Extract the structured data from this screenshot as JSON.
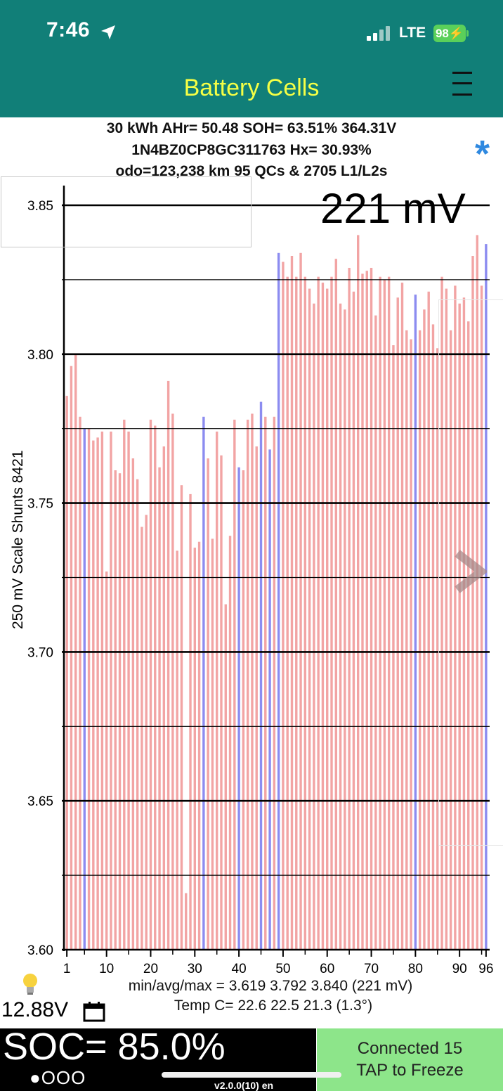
{
  "status_bar": {
    "time": "7:46",
    "network": "LTE",
    "battery": "98"
  },
  "nav": {
    "title": "Battery Cells"
  },
  "info": {
    "line1": "30 kWh  AHr= 50.48  SOH= 63.51%   364.31V",
    "line2": "1N4BZ0CP8GC311763   Hx= 30.93%",
    "line3": "odo=123,238 km 95 QCs & 2705 L1/L2s",
    "star": "*"
  },
  "range_label": "221 mV",
  "y_title": "250 mV Scale   Shunts 8421",
  "stats": {
    "minmax": "min/avg/max = 3.619  3.792  3.840  (221 mV)",
    "temp": "Temp C= 22.6  22.5  21.3  (1.3°)"
  },
  "aux_voltage": "12.88V",
  "soc": "SOC= 85.0%",
  "dots": "●OOO",
  "connection": {
    "line1": "Connected 15",
    "line2": "TAP to Freeze"
  },
  "version": "v2.0.0(10) en",
  "colors": {
    "bar": "#f2a4a4",
    "shunt_bar": "#8c8cf0",
    "header": "#117f78",
    "title": "#f5ff45",
    "connect_bg": "#8de58a"
  },
  "chart_data": {
    "type": "bar",
    "ylim": [
      3.6,
      3.85
    ],
    "yticks": [
      "3.85",
      "3.80",
      "3.75",
      "3.70",
      "3.65",
      "3.60"
    ],
    "xticks": [
      "1",
      "10",
      "20",
      "30",
      "40",
      "50",
      "60",
      "70",
      "80",
      "90",
      "96"
    ],
    "grid": true,
    "shunted_cells": [
      5,
      32,
      40,
      45,
      47,
      49,
      80,
      96
    ],
    "values": [
      3.786,
      3.796,
      3.8,
      3.779,
      3.775,
      3.775,
      3.771,
      3.772,
      3.774,
      3.727,
      3.774,
      3.761,
      3.76,
      3.778,
      3.774,
      3.765,
      3.758,
      3.742,
      3.746,
      3.778,
      3.776,
      3.762,
      3.769,
      3.791,
      3.78,
      3.734,
      3.756,
      3.619,
      3.753,
      3.735,
      3.737,
      3.779,
      3.765,
      3.738,
      3.774,
      3.766,
      3.716,
      3.739,
      3.778,
      3.762,
      3.761,
      3.778,
      3.78,
      3.769,
      3.784,
      3.779,
      3.768,
      3.779,
      3.834,
      3.831,
      3.826,
      3.833,
      3.826,
      3.834,
      3.826,
      3.822,
      3.817,
      3.826,
      3.824,
      3.822,
      3.826,
      3.832,
      3.817,
      3.815,
      3.829,
      3.821,
      3.84,
      3.827,
      3.828,
      3.829,
      3.813,
      3.826,
      3.825,
      3.826,
      3.803,
      3.819,
      3.824,
      3.808,
      3.805,
      3.82,
      3.808,
      3.815,
      3.821,
      3.81,
      3.802,
      3.826,
      3.822,
      3.808,
      3.823,
      3.817,
      3.819,
      3.811,
      3.833,
      3.84,
      3.823,
      3.837
    ]
  }
}
